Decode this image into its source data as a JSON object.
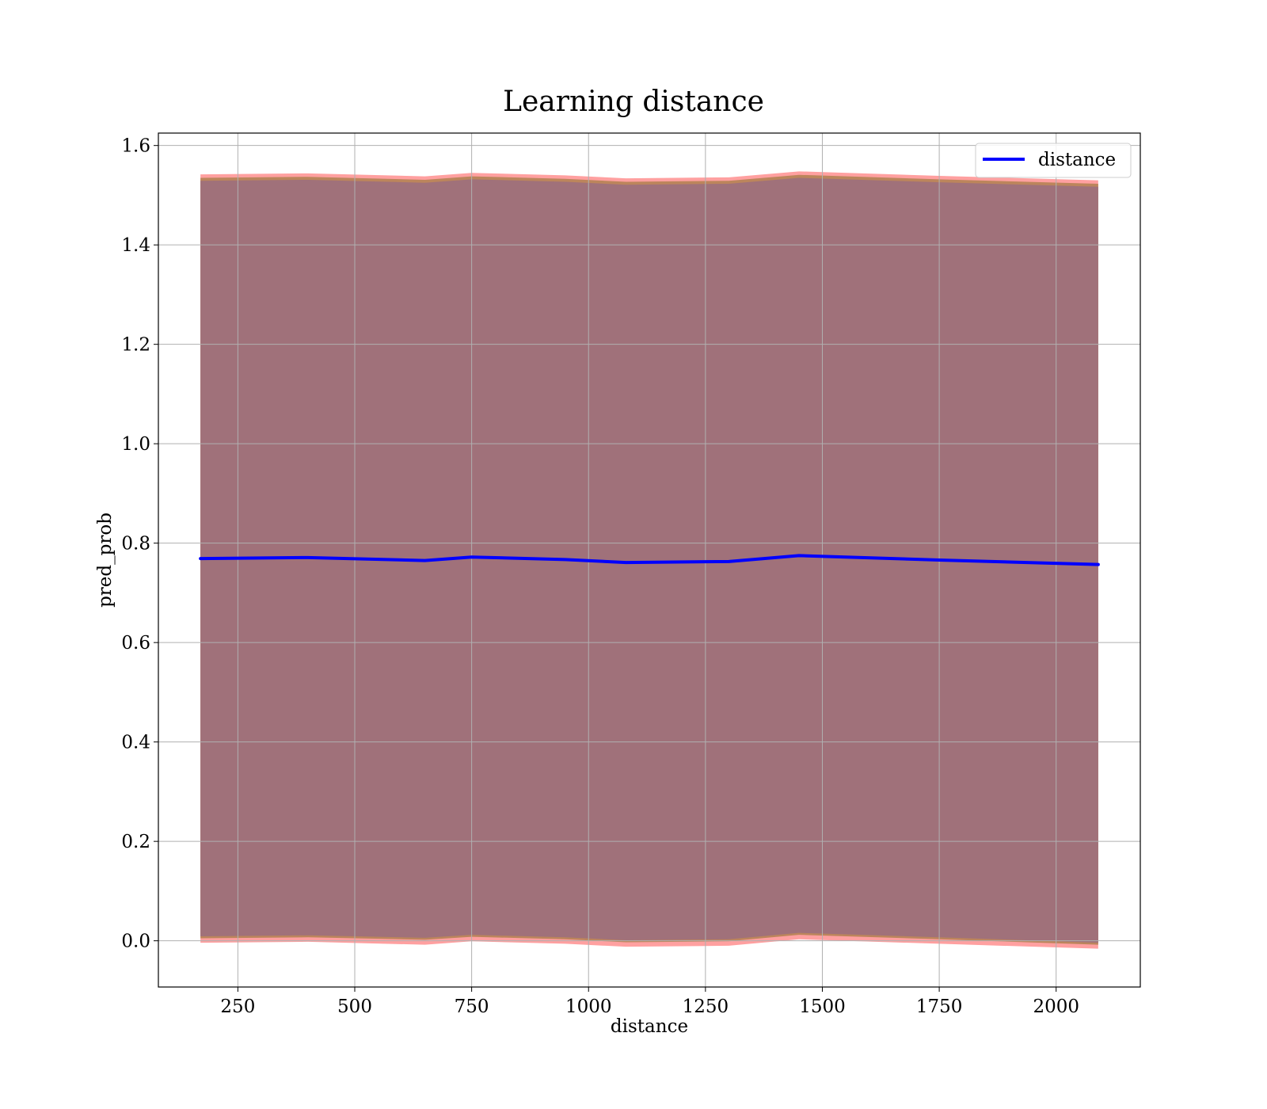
{
  "chart_data": {
    "type": "line",
    "title": "Learning distance",
    "xlabel": "distance",
    "ylabel": "pred_prob",
    "xlim": [
      80,
      2180
    ],
    "ylim": [
      -0.093,
      1.625
    ],
    "xticks": [
      250,
      500,
      750,
      1000,
      1250,
      1500,
      1750,
      2000
    ],
    "yticks": [
      0.0,
      0.2,
      0.4,
      0.6,
      0.8,
      1.0,
      1.2,
      1.4,
      1.6
    ],
    "xtick_labels": [
      "250",
      "500",
      "750",
      "1000",
      "1250",
      "1500",
      "1750",
      "2000"
    ],
    "ytick_labels": [
      "0.0",
      "0.2",
      "0.4",
      "0.6",
      "0.8",
      "1.0",
      "1.2",
      "1.4",
      "1.6"
    ],
    "grid": true,
    "legend": {
      "position": "top-right",
      "entries": [
        "distance"
      ]
    },
    "series": [
      {
        "name": "distance",
        "color": "#0000ff",
        "x": [
          170,
          400,
          650,
          750,
          950,
          1080,
          1300,
          1450,
          1750,
          2090
        ],
        "y": [
          0.769,
          0.771,
          0.765,
          0.772,
          0.767,
          0.761,
          0.763,
          0.775,
          0.766,
          0.757
        ]
      }
    ],
    "bands": [
      {
        "color": "#ff6060",
        "opacity": 0.6,
        "x": [
          170,
          400,
          650,
          750,
          950,
          1080,
          1300,
          1450,
          1750,
          2090
        ],
        "lower": [
          -0.004,
          -0.002,
          -0.008,
          -0.001,
          -0.006,
          -0.012,
          -0.01,
          0.003,
          -0.006,
          -0.016
        ],
        "upper": [
          1.542,
          1.544,
          1.538,
          1.545,
          1.54,
          1.534,
          1.536,
          1.548,
          1.539,
          1.53
        ]
      },
      {
        "color": "#b08050",
        "opacity": 0.85,
        "x": [
          170,
          400,
          650,
          750,
          950,
          1080,
          1300,
          1450,
          1750,
          2090
        ],
        "lower": [
          0.005,
          0.007,
          0.002,
          0.008,
          0.003,
          -0.003,
          -0.001,
          0.012,
          0.003,
          -0.008
        ],
        "upper": [
          1.535,
          1.537,
          1.531,
          1.538,
          1.533,
          1.527,
          1.529,
          1.541,
          1.532,
          1.523
        ]
      },
      {
        "color": "#a0717a",
        "opacity": 1.0,
        "x": [
          170,
          400,
          650,
          750,
          950,
          1080,
          1300,
          1450,
          1750,
          2090
        ],
        "lower": [
          0.009,
          0.011,
          0.006,
          0.012,
          0.007,
          0.001,
          0.003,
          0.016,
          0.007,
          -0.004
        ],
        "upper": [
          1.529,
          1.531,
          1.525,
          1.532,
          1.527,
          1.521,
          1.523,
          1.535,
          1.526,
          1.517
        ]
      }
    ],
    "colors": {
      "grid": "#b0b0b0",
      "frame": "#000000",
      "legend_border": "#cccccc"
    }
  }
}
